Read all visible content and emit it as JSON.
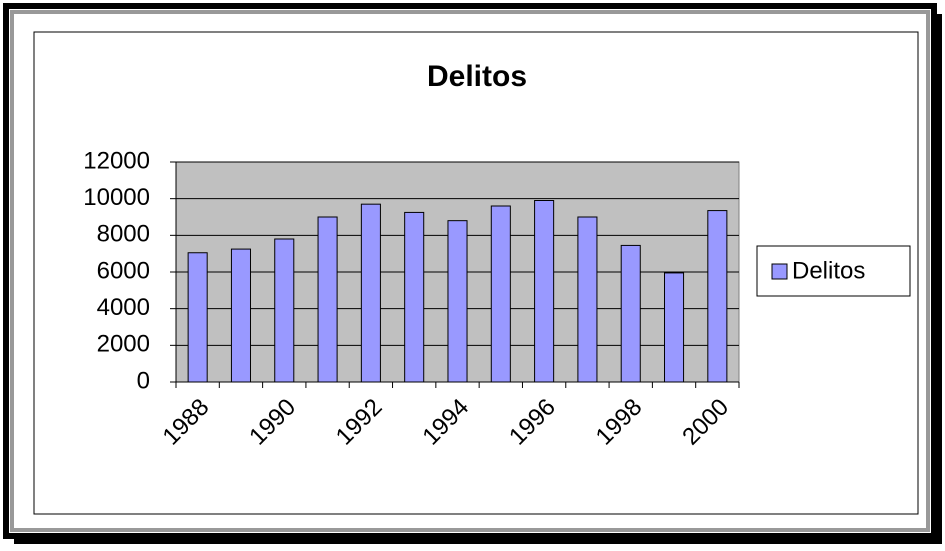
{
  "chart_data": {
    "type": "bar",
    "title": "Delitos",
    "categories": [
      "1988",
      null,
      "1990",
      null,
      "1992",
      null,
      "1994",
      null,
      "1996",
      null,
      "1998",
      null,
      "2000"
    ],
    "series": [
      {
        "name": "Delitos",
        "color": "#9999ff",
        "values": [
          7050,
          7250,
          7800,
          9000,
          9700,
          9250,
          8800,
          9600,
          9900,
          9000,
          7450,
          5950,
          9350
        ]
      }
    ],
    "ylim": [
      0,
      12000
    ],
    "yticks": [
      0,
      2000,
      4000,
      6000,
      8000,
      10000,
      12000
    ],
    "grid": true,
    "plot_background": "#c0c0c0",
    "legend": "right"
  }
}
